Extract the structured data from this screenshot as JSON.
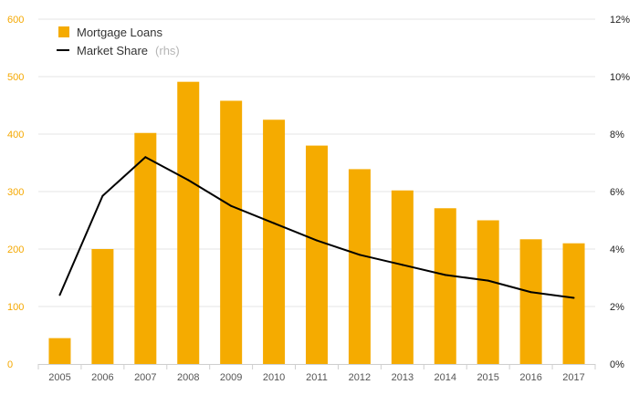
{
  "chart_data": {
    "type": "bar",
    "categories": [
      "2005",
      "2006",
      "2007",
      "2008",
      "2009",
      "2010",
      "2011",
      "2012",
      "2013",
      "2014",
      "2015",
      "2016",
      "2017"
    ],
    "series": [
      {
        "name": "Mortgage Loans",
        "type": "bar",
        "axis": "left",
        "color": "#f5ab00",
        "values": [
          45,
          200,
          402,
          491,
          458,
          425,
          380,
          339,
          302,
          271,
          250,
          217,
          210
        ]
      },
      {
        "name": "Market Share",
        "name_suffix": "(rhs)",
        "type": "line",
        "axis": "right",
        "color": "#000000",
        "values": [
          2.4,
          5.85,
          7.2,
          6.4,
          5.5,
          4.9,
          4.3,
          3.8,
          3.45,
          3.1,
          2.9,
          2.5,
          2.3
        ]
      }
    ],
    "y_left": {
      "lim": [
        0,
        600
      ],
      "ticks": [
        "0",
        "100",
        "200",
        "300",
        "400",
        "500",
        "600"
      ],
      "color": "#f5a800"
    },
    "y_right": {
      "lim": [
        0,
        12
      ],
      "ticks": [
        "0%",
        "2%",
        "4%",
        "6%",
        "8%",
        "10%",
        "12%"
      ]
    },
    "grid": "horizontal",
    "legend": "top-left"
  }
}
